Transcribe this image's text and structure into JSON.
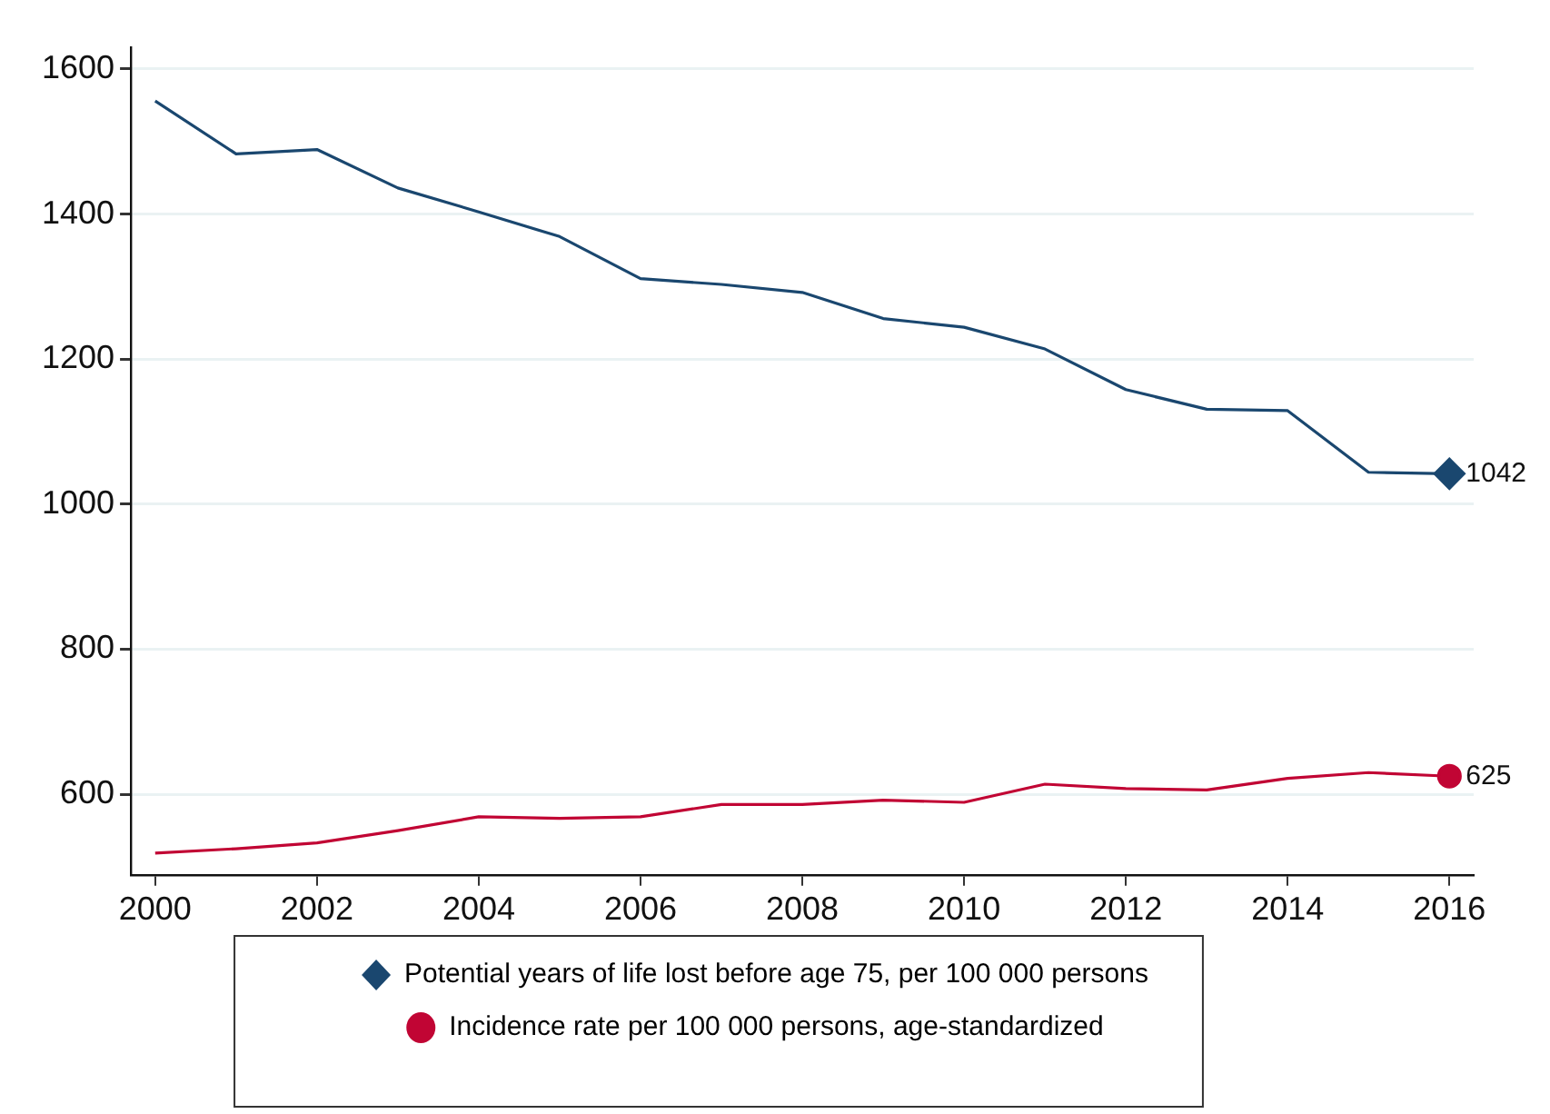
{
  "chart_data": {
    "type": "line",
    "x": [
      2000,
      2001,
      2002,
      2003,
      2004,
      2005,
      2006,
      2007,
      2008,
      2009,
      2010,
      2011,
      2012,
      2013,
      2014,
      2015,
      2016
    ],
    "xlim": [
      1999.7,
      2016.3
    ],
    "xticks": [
      2000,
      2002,
      2004,
      2006,
      2008,
      2010,
      2012,
      2014,
      2016
    ],
    "ylim": [
      489,
      1630
    ],
    "yticks": [
      600,
      800,
      1000,
      1200,
      1400,
      1600
    ],
    "grid": "y",
    "legend": "bottom",
    "series": [
      {
        "name": "Potential years of life lost before age 75, per 100 000 persons",
        "color": "#1a476f",
        "values": [
          1556,
          1483,
          1489,
          1436,
          1403,
          1369,
          1311,
          1303,
          1292,
          1256,
          1244,
          1214,
          1158,
          1131,
          1129,
          1044,
          1042
        ],
        "value_labels": [
          null,
          null,
          null,
          null,
          null,
          null,
          null,
          null,
          null,
          null,
          null,
          null,
          null,
          null,
          null,
          null,
          "1042"
        ]
      },
      {
        "name": "Incidence rate per 100 000 persons, age-standardized",
        "color": "#c10534",
        "values": [
          519,
          525,
          533,
          550,
          569,
          567,
          569,
          586,
          586,
          592,
          589,
          614,
          608,
          606,
          622,
          630,
          625
        ],
        "value_labels": [
          null,
          null,
          null,
          null,
          null,
          null,
          null,
          null,
          null,
          null,
          null,
          null,
          null,
          null,
          null,
          null,
          "625"
        ]
      }
    ]
  }
}
